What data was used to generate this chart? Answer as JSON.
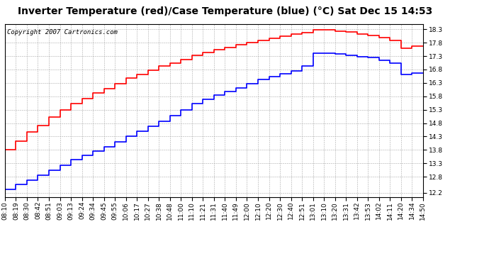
{
  "title": "Inverter Temperature (red)/Case Temperature (blue) (°C) Sat Dec 15 14:53",
  "copyright": "Copyright 2007 Cartronics.com",
  "background_color": "#ffffff",
  "plot_bg_color": "#ffffff",
  "grid_color": "#aaaaaa",
  "y_ticks": [
    12.2,
    12.8,
    13.3,
    13.8,
    14.3,
    14.8,
    15.3,
    15.8,
    16.3,
    16.8,
    17.3,
    17.8,
    18.3
  ],
  "ylim": [
    12.05,
    18.5
  ],
  "x_labels": [
    "08:10",
    "08:19",
    "08:30",
    "08:42",
    "08:51",
    "09:03",
    "09:13",
    "09:24",
    "09:34",
    "09:45",
    "09:55",
    "10:06",
    "10:17",
    "10:27",
    "10:38",
    "10:48",
    "11:00",
    "11:10",
    "11:21",
    "11:31",
    "11:40",
    "11:49",
    "12:00",
    "12:10",
    "12:20",
    "12:30",
    "12:40",
    "12:51",
    "13:01",
    "13:10",
    "13:20",
    "13:31",
    "13:42",
    "13:53",
    "14:02",
    "14:11",
    "14:20",
    "14:34",
    "14:50"
  ],
  "red_data": [
    13.55,
    13.82,
    14.12,
    14.48,
    14.72,
    15.02,
    15.28,
    15.52,
    15.72,
    15.92,
    16.08,
    16.28,
    16.48,
    16.62,
    16.78,
    16.92,
    17.05,
    17.18,
    17.32,
    17.44,
    17.54,
    17.62,
    17.72,
    17.8,
    17.88,
    17.96,
    18.04,
    18.12,
    18.18,
    18.28,
    18.28,
    18.22,
    18.2,
    18.12,
    18.08,
    17.98,
    17.88,
    17.6,
    17.68
  ],
  "blue_data": [
    12.22,
    12.32,
    12.5,
    12.68,
    12.86,
    13.05,
    13.24,
    13.44,
    13.6,
    13.76,
    13.92,
    14.1,
    14.3,
    14.5,
    14.68,
    14.88,
    15.08,
    15.3,
    15.52,
    15.7,
    15.86,
    15.98,
    16.12,
    16.28,
    16.42,
    16.54,
    16.64,
    16.74,
    16.92,
    17.4,
    17.42,
    17.38,
    17.34,
    17.28,
    17.24,
    17.14,
    17.04,
    16.62,
    16.68
  ],
  "red_color": "#ff0000",
  "blue_color": "#0000ff",
  "line_width": 1.2,
  "title_fontsize": 10,
  "tick_fontsize": 6.5,
  "copyright_fontsize": 6.5
}
